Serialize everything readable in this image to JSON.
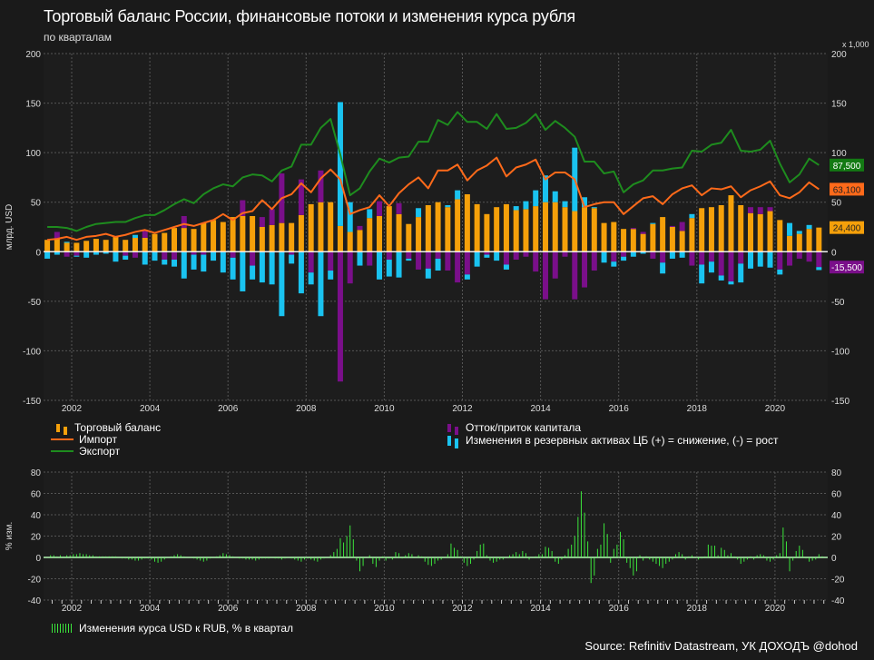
{
  "title": "Торговый баланс России, финансовые потоки и изменения курса рубля",
  "subtitle": "по кварталам",
  "source": "Source: Refinitiv Datastream, УК ДОХОДЪ @dohod",
  "colors": {
    "trade": "#f5a00a",
    "import": "#ff6a1a",
    "export": "#1e8c1e",
    "capital": "#7a0f8a",
    "reserves": "#1ac3f0",
    "fx": "#3ce63c"
  },
  "legend": {
    "trade": "Торговый баланс",
    "import": "Импорт",
    "export": "Экспорт",
    "capital": "Отток/приток капитала",
    "reserves": "Изменения в резервных активах ЦБ (+) = снижение, (-) = рост",
    "fx": "Изменения курса USD к RUB, % в квартал"
  },
  "chart_data": [
    {
      "type": "bar",
      "title": "Торговый баланс России, финансовые потоки и изменения курса рубля",
      "ylabel": "млрд. USD",
      "right_axis_multiplier": "x 1,000",
      "ylim": [
        -150,
        200
      ],
      "yticks": [
        200,
        150,
        100,
        50,
        0,
        -50,
        -100,
        -150
      ],
      "xticks": [
        "2002",
        "2004",
        "2006",
        "2008",
        "2010",
        "2012",
        "2014",
        "2016",
        "2018",
        "2020"
      ],
      "x_start_quarter": "2001Q2",
      "grid": true,
      "last_value_tags": [
        {
          "label": "87,500",
          "value": 87.5,
          "series": "export"
        },
        {
          "label": "63,100",
          "value": 63.1,
          "series": "import"
        },
        {
          "label": "24,400",
          "value": 24.4,
          "series": "trade"
        },
        {
          "label": "-15,500",
          "value": -15.5,
          "series": "capital"
        }
      ],
      "series": [
        {
          "name": "Торговый баланс",
          "key": "trade",
          "kind": "bar",
          "values": [
            12,
            13,
            9,
            9,
            11,
            13,
            12,
            15,
            12,
            14,
            14,
            18,
            19,
            24,
            24,
            23,
            29,
            32,
            30,
            35,
            36,
            36,
            25,
            27,
            29,
            29,
            37,
            48,
            50,
            50,
            26,
            20,
            22,
            34,
            36,
            46,
            38,
            28,
            35,
            47,
            50,
            45,
            53,
            58,
            48,
            38,
            45,
            48,
            42,
            43,
            46,
            50,
            50,
            45,
            41,
            45,
            44,
            29,
            30,
            23,
            23,
            18,
            28,
            35,
            25,
            21,
            34,
            44,
            45,
            47,
            57,
            47,
            39,
            38,
            41,
            32,
            16,
            18,
            23,
            24.4
          ]
        },
        {
          "name": "Отток/приток капитала",
          "key": "capital",
          "kind": "bar",
          "values": [
            0,
            7,
            -5,
            -4,
            0,
            0,
            0,
            0,
            -4,
            -6,
            7,
            0,
            -8,
            -8,
            12,
            -3,
            -3,
            0,
            0,
            -6,
            16,
            -14,
            10,
            16,
            50,
            -3,
            36,
            -21,
            32,
            -19,
            -131,
            -32,
            4,
            -14,
            15,
            -8,
            11,
            -7,
            -18,
            -17,
            -7,
            -19,
            -31,
            -23,
            0,
            -3,
            0,
            -13,
            -8,
            -5,
            -20,
            -48,
            -27,
            -5,
            -48,
            -36,
            -19,
            0,
            -10,
            -5,
            1,
            2,
            -7,
            -11,
            1,
            9,
            -14,
            -13,
            -10,
            -24,
            -30,
            -12,
            6,
            7,
            4,
            -18,
            -14,
            -7,
            -10,
            -15.5
          ]
        },
        {
          "name": "Изменения в резервных активах ЦБ",
          "key": "reserves",
          "kind": "bar",
          "values": [
            -7,
            -3,
            1,
            -1,
            -6,
            -3,
            -2,
            -10,
            -4,
            3,
            -13,
            -9,
            -5,
            -7,
            -27,
            -15,
            -17,
            -9,
            -21,
            -22,
            -40,
            -14,
            -31,
            -33,
            -65,
            -9,
            -42,
            -12,
            -65,
            -9,
            125,
            30,
            -14,
            9,
            -28,
            -17,
            -26,
            -2,
            9,
            -10,
            -12,
            2,
            9,
            -5,
            -15,
            -3,
            -9,
            -5,
            4,
            8,
            16,
            27,
            11,
            6,
            64,
            10,
            1,
            -11,
            -5,
            -4,
            -5,
            -2,
            1,
            -11,
            -7,
            -6,
            4,
            -19,
            -11,
            -5,
            -3,
            -19,
            -17,
            -15,
            -16,
            -5,
            13,
            3,
            4,
            -3
          ]
        },
        {
          "name": "Импорт",
          "key": "import",
          "kind": "line",
          "values": [
            12,
            13,
            15,
            12,
            15,
            16,
            18,
            15,
            17,
            20,
            22,
            19,
            22,
            25,
            28,
            26,
            29,
            32,
            38,
            32,
            39,
            41,
            52,
            43,
            54,
            58,
            69,
            60,
            74,
            83,
            73,
            38,
            42,
            45,
            57,
            46,
            59,
            68,
            75,
            64,
            82,
            82,
            88,
            72,
            82,
            87,
            95,
            76,
            85,
            88,
            93,
            73,
            80,
            80,
            73,
            45,
            48,
            50,
            50,
            38,
            46,
            54,
            56,
            48,
            58,
            64,
            67,
            57,
            64,
            63,
            66,
            55,
            62,
            66,
            71,
            57,
            54,
            60,
            70,
            63.1
          ]
        },
        {
          "name": "Экспорт",
          "key": "export",
          "kind": "line",
          "values": [
            25,
            25,
            24,
            21,
            25,
            28,
            29,
            30,
            30,
            34,
            37,
            37,
            42,
            48,
            53,
            49,
            58,
            64,
            68,
            66,
            75,
            78,
            77,
            71,
            82,
            86,
            108,
            108,
            125,
            134,
            98,
            57,
            64,
            81,
            94,
            90,
            95,
            96,
            111,
            111,
            133,
            128,
            141,
            131,
            131,
            124,
            139,
            124,
            125,
            130,
            139,
            123,
            132,
            125,
            116,
            91,
            91,
            79,
            81,
            60,
            68,
            72,
            82,
            82,
            84,
            85,
            102,
            101,
            108,
            110,
            123,
            102,
            101,
            103,
            112,
            89,
            70,
            78,
            94,
            87.5
          ]
        }
      ]
    },
    {
      "type": "bar",
      "title": "Изменения курса USD к RUB, % в квартал",
      "ylabel": "% изм.",
      "ylim": [
        -40,
        80
      ],
      "yticks": [
        80,
        60,
        40,
        20,
        0,
        -20,
        -40
      ],
      "xticks": [
        "2002",
        "2004",
        "2006",
        "2008",
        "2010",
        "2012",
        "2014",
        "2016",
        "2018",
        "2020"
      ],
      "x_start_month": "2001-06",
      "frequency": "monthly",
      "grid": true,
      "series": [
        {
          "name": "Изменения курса USD к RUB, % в квартал",
          "key": "fx",
          "values": [
            2,
            2,
            1,
            2,
            1,
            2,
            2,
            3,
            3,
            4,
            3,
            3,
            2,
            2,
            1,
            1,
            1,
            1,
            1,
            1,
            1,
            0,
            -1,
            -1,
            -2,
            -2,
            -3,
            -3,
            -2,
            -1,
            -1,
            -2,
            -4,
            -5,
            -4,
            -2,
            0,
            1,
            2,
            3,
            2,
            1,
            0,
            0,
            -1,
            -2,
            -3,
            -4,
            -3,
            -1,
            0,
            1,
            2,
            4,
            3,
            2,
            1,
            0,
            -1,
            -1,
            -2,
            -2,
            -2,
            -3,
            -2,
            -1,
            -1,
            -1,
            0,
            -1,
            -1,
            -2,
            -1,
            0,
            -1,
            -2,
            -3,
            -4,
            -2,
            -1,
            -2,
            -3,
            -4,
            -2,
            -1,
            0,
            2,
            5,
            8,
            18,
            14,
            20,
            30,
            17,
            -3,
            -13,
            -8,
            0,
            2,
            -6,
            -9,
            -3,
            1,
            -3,
            -1,
            -2,
            5,
            4,
            -1,
            2,
            4,
            3,
            0,
            2,
            1,
            -4,
            -7,
            -8,
            -6,
            -3,
            -2,
            0,
            3,
            13,
            9,
            7,
            1,
            -5,
            -8,
            -6,
            -2,
            6,
            12,
            13,
            2,
            -3,
            -5,
            -4,
            -2,
            -2,
            0,
            2,
            3,
            5,
            3,
            6,
            4,
            -2,
            0,
            1,
            3,
            3,
            10,
            9,
            6,
            -4,
            -6,
            -2,
            2,
            8,
            12,
            20,
            38,
            62,
            42,
            15,
            -24,
            -17,
            8,
            12,
            32,
            22,
            -5,
            8,
            12,
            24,
            17,
            -5,
            -10,
            -17,
            -13,
            2,
            -3,
            1,
            -2,
            -4,
            -6,
            -8,
            -10,
            -6,
            -4,
            -2,
            3,
            5,
            3,
            -2,
            1,
            2,
            0,
            -2,
            -1,
            1,
            12,
            11,
            11,
            2,
            9,
            7,
            2,
            4,
            1,
            -2,
            -6,
            -4,
            -2,
            1,
            -2,
            2,
            3,
            2,
            -3,
            -4,
            -2,
            2,
            4,
            28,
            15,
            -13,
            -3,
            6,
            11,
            7,
            -1,
            -4,
            -3,
            -2,
            3,
            1
          ]
        }
      ]
    }
  ]
}
